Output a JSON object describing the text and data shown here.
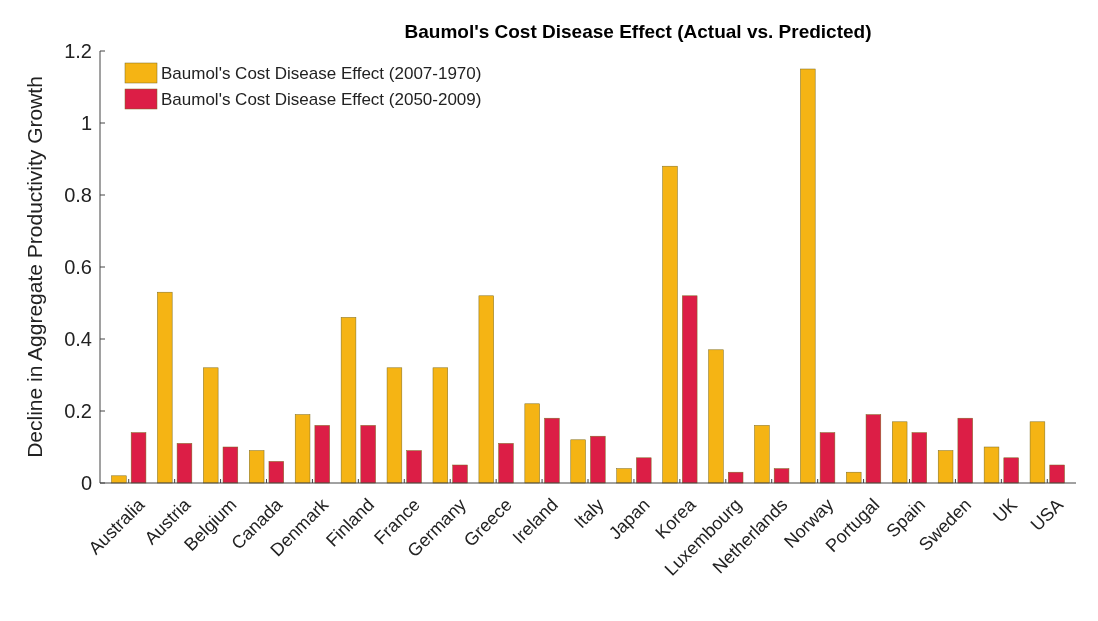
{
  "chart_data": {
    "type": "bar",
    "title": "Baumol's Cost Disease Effect (Actual vs. Predicted)",
    "ylabel": "Decline in Aggregate Productivity Growth",
    "categories": [
      "Australia",
      "Austria",
      "Belgium",
      "Canada",
      "Denmark",
      "Finland",
      "France",
      "Germany",
      "Greece",
      "Ireland",
      "Italy",
      "Japan",
      "Korea",
      "Luxembourg",
      "Netherlands",
      "Norway",
      "Portugal",
      "Spain",
      "Sweden",
      "UK",
      "USA"
    ],
    "series": [
      {
        "name": "Baumol's Cost Disease Effect (2007-1970)",
        "color": "#f5b414",
        "values": [
          0.02,
          0.53,
          0.32,
          0.09,
          0.19,
          0.46,
          0.32,
          0.32,
          0.52,
          0.22,
          0.12,
          0.04,
          0.88,
          0.37,
          0.16,
          1.15,
          0.03,
          0.17,
          0.09,
          0.1,
          0.17
        ]
      },
      {
        "name": "Baumol's Cost Disease Effect (2050-2009)",
        "color": "#dc1e46",
        "values": [
          0.14,
          0.11,
          0.1,
          0.06,
          0.16,
          0.16,
          0.09,
          0.05,
          0.11,
          0.18,
          0.13,
          0.07,
          0.52,
          0.03,
          0.04,
          0.14,
          0.19,
          0.14,
          0.18,
          0.07,
          0.05
        ]
      }
    ],
    "ylim": [
      0,
      1.2
    ],
    "yticks": [
      0,
      0.2,
      0.4,
      0.6,
      0.8,
      1,
      1.2
    ],
    "grid": false,
    "legend": "top left"
  }
}
